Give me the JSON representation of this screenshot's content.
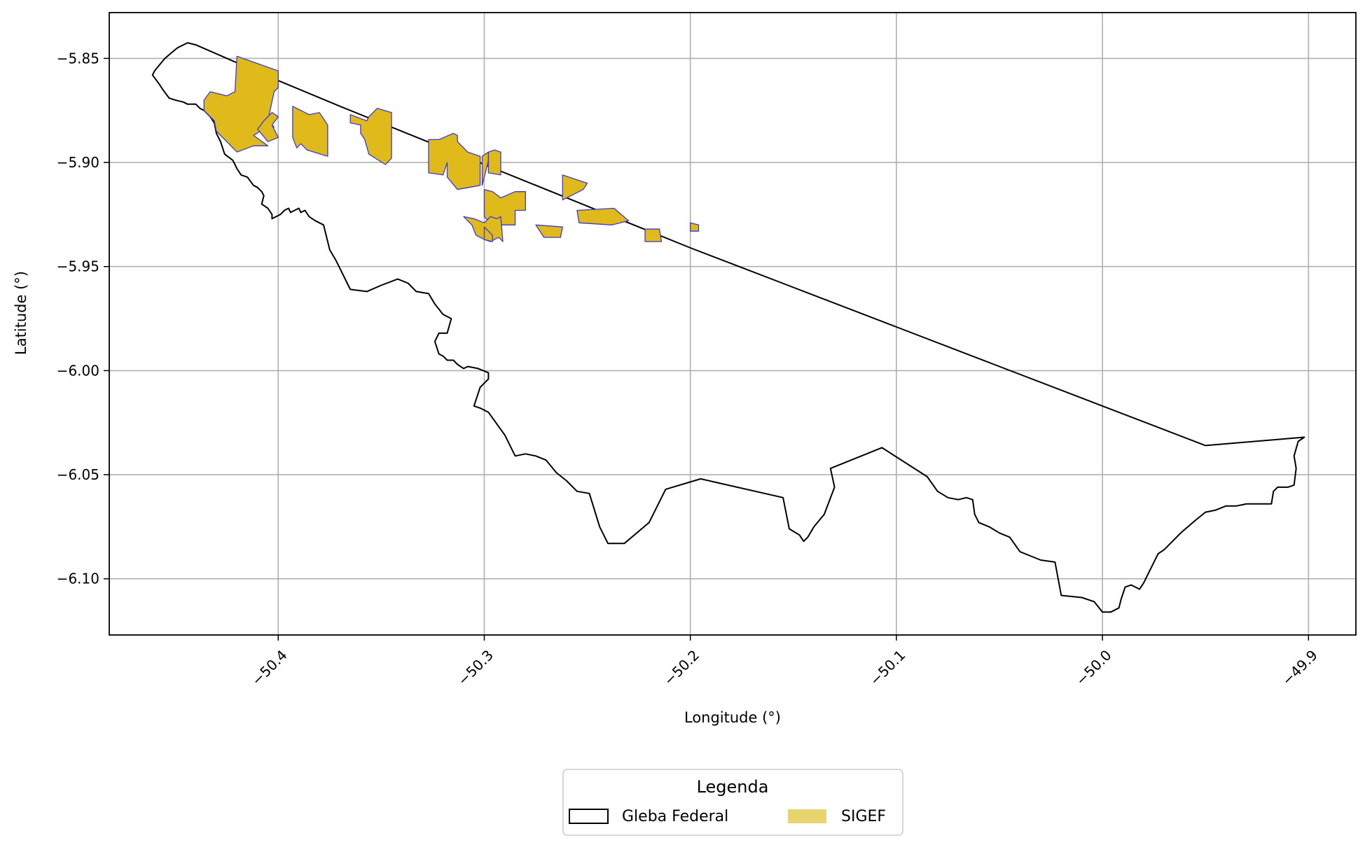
{
  "chart_data": {
    "type": "map",
    "xlabel": "Longitude (°)",
    "ylabel": "Latitude (°)",
    "xlim": [
      -50.482,
      -49.877
    ],
    "ylim": [
      -6.127,
      -5.828
    ],
    "x_ticks": [
      -50.4,
      -50.3,
      -50.2,
      -50.1,
      -50.0,
      -49.9
    ],
    "x_tick_labels": [
      "−50.4",
      "−50.3",
      "−50.2",
      "−50.1",
      "−50.0",
      "−49.9"
    ],
    "y_ticks": [
      -5.85,
      -5.9,
      -5.95,
      -6.0,
      -6.05,
      -6.1
    ],
    "y_tick_labels": [
      "−5.85",
      "−5.90",
      "−5.95",
      "−6.00",
      "−6.05",
      "−6.10"
    ],
    "grid": true,
    "legend": {
      "title": "Legenda",
      "placement": "bottom-center",
      "entries": [
        {
          "label": "Gleba Federal",
          "style": "outline"
        },
        {
          "label": "SIGEF",
          "style": "fill"
        }
      ]
    },
    "colors": {
      "gleba_stroke": "#000000",
      "sigef_fill": "#e0b91a",
      "sigef_edge": "#3b3bd6",
      "legend_sigef": "#e8d46e",
      "grid": "#b0b0b0"
    },
    "gleba_federal": {
      "name": "Gleba Federal",
      "boundary": [
        [
          -50.444,
          -5.8425
        ],
        [
          -50.44,
          -5.8435
        ],
        [
          -50.404,
          -5.859
        ],
        [
          -50.37,
          -5.873
        ],
        [
          -50.33,
          -5.889
        ],
        [
          -50.3,
          -5.901
        ],
        [
          -50.26,
          -5.917
        ],
        [
          -50.2,
          -5.941
        ],
        [
          -50.15,
          -5.96
        ],
        [
          -50.1,
          -5.979
        ],
        [
          -50.05,
          -5.998
        ],
        [
          -50.0,
          -6.017
        ],
        [
          -49.95,
          -6.036
        ],
        [
          -49.902,
          -6.032
        ],
        [
          -49.905,
          -6.034
        ],
        [
          -49.907,
          -6.041
        ],
        [
          -49.906,
          -6.047
        ],
        [
          -49.907,
          -6.055
        ],
        [
          -49.91,
          -6.056
        ],
        [
          -49.915,
          -6.056
        ],
        [
          -49.917,
          -6.058
        ],
        [
          -49.918,
          -6.064
        ],
        [
          -49.93,
          -6.064
        ],
        [
          -49.935,
          -6.065
        ],
        [
          -49.94,
          -6.065
        ],
        [
          -49.945,
          -6.067
        ],
        [
          -49.95,
          -6.068
        ],
        [
          -49.955,
          -6.072
        ],
        [
          -49.962,
          -6.078
        ],
        [
          -49.965,
          -6.081
        ],
        [
          -49.97,
          -6.086
        ],
        [
          -49.973,
          -6.088
        ],
        [
          -49.976,
          -6.094
        ],
        [
          -49.978,
          -6.098
        ],
        [
          -49.98,
          -6.102
        ],
        [
          -49.982,
          -6.105
        ],
        [
          -49.984,
          -6.104
        ],
        [
          -49.986,
          -6.103
        ],
        [
          -49.989,
          -6.104
        ],
        [
          -49.991,
          -6.11
        ],
        [
          -49.992,
          -6.114
        ],
        [
          -49.996,
          -6.116
        ],
        [
          -50.0,
          -6.116
        ],
        [
          -50.004,
          -6.111
        ],
        [
          -50.01,
          -6.109
        ],
        [
          -50.02,
          -6.108
        ],
        [
          -50.023,
          -6.092
        ],
        [
          -50.03,
          -6.091
        ],
        [
          -50.035,
          -6.089
        ],
        [
          -50.04,
          -6.087
        ],
        [
          -50.045,
          -6.08
        ],
        [
          -50.05,
          -6.078
        ],
        [
          -50.055,
          -6.075
        ],
        [
          -50.06,
          -6.073
        ],
        [
          -50.062,
          -6.069
        ],
        [
          -50.063,
          -6.062
        ],
        [
          -50.066,
          -6.061
        ],
        [
          -50.07,
          -6.062
        ],
        [
          -50.075,
          -6.061
        ],
        [
          -50.08,
          -6.058
        ],
        [
          -50.085,
          -6.051
        ],
        [
          -50.107,
          -6.037
        ],
        [
          -50.132,
          -6.047
        ],
        [
          -50.13,
          -6.056
        ],
        [
          -50.135,
          -6.069
        ],
        [
          -50.14,
          -6.075
        ],
        [
          -50.143,
          -6.08
        ],
        [
          -50.145,
          -6.082
        ],
        [
          -50.147,
          -6.079
        ],
        [
          -50.152,
          -6.076
        ],
        [
          -50.155,
          -6.061
        ],
        [
          -50.195,
          -6.052
        ],
        [
          -50.212,
          -6.057
        ],
        [
          -50.22,
          -6.073
        ],
        [
          -50.232,
          -6.083
        ],
        [
          -50.24,
          -6.083
        ],
        [
          -50.244,
          -6.075
        ],
        [
          -50.249,
          -6.059
        ],
        [
          -50.255,
          -6.058
        ],
        [
          -50.26,
          -6.053
        ],
        [
          -50.265,
          -6.049
        ],
        [
          -50.27,
          -6.043
        ],
        [
          -50.275,
          -6.041
        ],
        [
          -50.28,
          -6.04
        ],
        [
          -50.285,
          -6.041
        ],
        [
          -50.29,
          -6.031
        ],
        [
          -50.298,
          -6.02
        ],
        [
          -50.302,
          -6.018
        ],
        [
          -50.305,
          -6.017
        ],
        [
          -50.302,
          -6.008
        ],
        [
          -50.298,
          -6.004
        ],
        [
          -50.298,
          -6.001
        ],
        [
          -50.303,
          -5.999
        ],
        [
          -50.308,
          -5.998
        ],
        [
          -50.31,
          -5.999
        ],
        [
          -50.313,
          -5.997
        ],
        [
          -50.315,
          -5.995
        ],
        [
          -50.318,
          -5.995
        ],
        [
          -50.32,
          -5.993
        ],
        [
          -50.322,
          -5.992
        ],
        [
          -50.324,
          -5.986
        ],
        [
          -50.322,
          -5.982
        ],
        [
          -50.318,
          -5.982
        ],
        [
          -50.316,
          -5.975
        ],
        [
          -50.32,
          -5.973
        ],
        [
          -50.324,
          -5.968
        ],
        [
          -50.327,
          -5.963
        ],
        [
          -50.333,
          -5.962
        ],
        [
          -50.337,
          -5.958
        ],
        [
          -50.342,
          -5.956
        ],
        [
          -50.35,
          -5.959
        ],
        [
          -50.357,
          -5.962
        ],
        [
          -50.365,
          -5.961
        ],
        [
          -50.367,
          -5.957
        ],
        [
          -50.37,
          -5.951
        ],
        [
          -50.372,
          -5.947
        ],
        [
          -50.375,
          -5.942
        ],
        [
          -50.376,
          -5.938
        ],
        [
          -50.378,
          -5.93
        ],
        [
          -50.382,
          -5.928
        ],
        [
          -50.385,
          -5.926
        ],
        [
          -50.387,
          -5.923
        ],
        [
          -50.389,
          -5.924
        ],
        [
          -50.39,
          -5.922
        ],
        [
          -50.394,
          -5.924
        ],
        [
          -50.395,
          -5.922
        ],
        [
          -50.397,
          -5.923
        ],
        [
          -50.399,
          -5.925
        ],
        [
          -50.403,
          -5.927
        ],
        [
          -50.403,
          -5.925
        ],
        [
          -50.405,
          -5.922
        ],
        [
          -50.408,
          -5.92
        ],
        [
          -50.407,
          -5.916
        ],
        [
          -50.408,
          -5.914
        ],
        [
          -50.41,
          -5.912
        ],
        [
          -50.412,
          -5.911
        ],
        [
          -50.415,
          -5.907
        ],
        [
          -50.418,
          -5.906
        ],
        [
          -50.42,
          -5.903
        ],
        [
          -50.422,
          -5.899
        ],
        [
          -50.426,
          -5.896
        ],
        [
          -50.428,
          -5.89
        ],
        [
          -50.43,
          -5.886
        ],
        [
          -50.431,
          -5.881
        ],
        [
          -50.433,
          -5.878
        ],
        [
          -50.436,
          -5.875
        ],
        [
          -50.438,
          -5.874
        ],
        [
          -50.44,
          -5.872
        ],
        [
          -50.444,
          -5.872
        ],
        [
          -50.446,
          -5.871
        ],
        [
          -50.45,
          -5.87
        ],
        [
          -50.453,
          -5.869
        ],
        [
          -50.456,
          -5.865
        ],
        [
          -50.458,
          -5.862
        ],
        [
          -50.461,
          -5.858
        ],
        [
          -50.46,
          -5.856
        ],
        [
          -50.455,
          -5.85
        ],
        [
          -50.449,
          -5.845
        ],
        [
          -50.444,
          -5.8425
        ]
      ]
    },
    "sigef_parcels": [
      [
        [
          -50.42,
          -5.849
        ],
        [
          -50.4,
          -5.856
        ],
        [
          -50.4,
          -5.864
        ],
        [
          -50.402,
          -5.866
        ],
        [
          -50.405,
          -5.88
        ],
        [
          -50.402,
          -5.883
        ],
        [
          -50.407,
          -5.884
        ],
        [
          -50.412,
          -5.887
        ],
        [
          -50.405,
          -5.892
        ],
        [
          -50.412,
          -5.892
        ],
        [
          -50.42,
          -5.895
        ],
        [
          -50.425,
          -5.89
        ],
        [
          -50.43,
          -5.885
        ],
        [
          -50.431,
          -5.88
        ],
        [
          -50.433,
          -5.878
        ],
        [
          -50.436,
          -5.875
        ],
        [
          -50.436,
          -5.87
        ],
        [
          -50.433,
          -5.866
        ],
        [
          -50.425,
          -5.868
        ],
        [
          -50.421,
          -5.866
        ],
        [
          -50.42,
          -5.849
        ]
      ],
      [
        [
          -50.4,
          -5.878
        ],
        [
          -50.403,
          -5.876
        ],
        [
          -50.407,
          -5.88
        ],
        [
          -50.41,
          -5.884
        ],
        [
          -50.405,
          -5.89
        ],
        [
          -50.4,
          -5.888
        ],
        [
          -50.403,
          -5.882
        ],
        [
          -50.4,
          -5.878
        ]
      ],
      [
        [
          -50.393,
          -5.873
        ],
        [
          -50.385,
          -5.877
        ],
        [
          -50.38,
          -5.876
        ],
        [
          -50.376,
          -5.882
        ],
        [
          -50.376,
          -5.897
        ],
        [
          -50.386,
          -5.894
        ],
        [
          -50.389,
          -5.891
        ],
        [
          -50.391,
          -5.893
        ],
        [
          -50.393,
          -5.888
        ],
        [
          -50.393,
          -5.873
        ]
      ],
      [
        [
          -50.365,
          -5.877
        ],
        [
          -50.357,
          -5.88
        ],
        [
          -50.356,
          -5.878
        ],
        [
          -50.352,
          -5.874
        ],
        [
          -50.345,
          -5.876
        ],
        [
          -50.345,
          -5.898
        ],
        [
          -50.348,
          -5.901
        ],
        [
          -50.356,
          -5.896
        ],
        [
          -50.358,
          -5.889
        ],
        [
          -50.36,
          -5.886
        ],
        [
          -50.36,
          -5.882
        ],
        [
          -50.365,
          -5.881
        ],
        [
          -50.365,
          -5.877
        ]
      ],
      [
        [
          -50.322,
          -5.889
        ],
        [
          -50.315,
          -5.886
        ],
        [
          -50.313,
          -5.887
        ],
        [
          -50.313,
          -5.89
        ],
        [
          -50.308,
          -5.895
        ],
        [
          -50.302,
          -5.897
        ],
        [
          -50.302,
          -5.911
        ],
        [
          -50.313,
          -5.913
        ],
        [
          -50.318,
          -5.907
        ],
        [
          -50.318,
          -5.9
        ],
        [
          -50.32,
          -5.906
        ],
        [
          -50.327,
          -5.905
        ],
        [
          -50.327,
          -5.889
        ],
        [
          -50.322,
          -5.889
        ]
      ],
      [
        [
          -50.301,
          -5.897
        ],
        [
          -50.298,
          -5.895
        ],
        [
          -50.298,
          -5.899
        ],
        [
          -50.301,
          -5.911
        ],
        [
          -50.301,
          -5.897
        ]
      ],
      [
        [
          -50.3,
          -5.913
        ],
        [
          -50.296,
          -5.914
        ],
        [
          -50.292,
          -5.917
        ],
        [
          -50.285,
          -5.914
        ],
        [
          -50.28,
          -5.914
        ],
        [
          -50.28,
          -5.923
        ],
        [
          -50.285,
          -5.923
        ],
        [
          -50.285,
          -5.93
        ],
        [
          -50.296,
          -5.93
        ],
        [
          -50.3,
          -5.926
        ],
        [
          -50.3,
          -5.913
        ]
      ],
      [
        [
          -50.31,
          -5.926
        ],
        [
          -50.306,
          -5.93
        ],
        [
          -50.304,
          -5.935
        ],
        [
          -50.3,
          -5.937
        ],
        [
          -50.297,
          -5.938
        ],
        [
          -50.293,
          -5.936
        ],
        [
          -50.291,
          -5.938
        ],
        [
          -50.292,
          -5.926
        ],
        [
          -50.294,
          -5.927
        ],
        [
          -50.297,
          -5.926
        ],
        [
          -50.3,
          -5.929
        ],
        [
          -50.305,
          -5.927
        ],
        [
          -50.31,
          -5.926
        ]
      ],
      [
        [
          -50.298,
          -5.895
        ],
        [
          -50.295,
          -5.894
        ],
        [
          -50.292,
          -5.895
        ],
        [
          -50.292,
          -5.906
        ],
        [
          -50.298,
          -5.905
        ],
        [
          -50.298,
          -5.895
        ]
      ],
      [
        [
          -50.262,
          -5.906
        ],
        [
          -50.25,
          -5.91
        ],
        [
          -50.252,
          -5.913
        ],
        [
          -50.262,
          -5.918
        ],
        [
          -50.262,
          -5.906
        ]
      ],
      [
        [
          -50.275,
          -5.93
        ],
        [
          -50.271,
          -5.936
        ],
        [
          -50.263,
          -5.936
        ],
        [
          -50.262,
          -5.931
        ],
        [
          -50.275,
          -5.93
        ]
      ],
      [
        [
          -50.255,
          -5.923
        ],
        [
          -50.237,
          -5.922
        ],
        [
          -50.23,
          -5.928
        ],
        [
          -50.238,
          -5.93
        ],
        [
          -50.254,
          -5.929
        ],
        [
          -50.255,
          -5.923
        ]
      ],
      [
        [
          -50.222,
          -5.932
        ],
        [
          -50.215,
          -5.932
        ],
        [
          -50.214,
          -5.938
        ],
        [
          -50.222,
          -5.938
        ],
        [
          -50.222,
          -5.932
        ]
      ],
      [
        [
          -50.2,
          -5.929
        ],
        [
          -50.196,
          -5.93
        ],
        [
          -50.196,
          -5.933
        ],
        [
          -50.2,
          -5.933
        ],
        [
          -50.2,
          -5.929
        ]
      ],
      [
        [
          -50.3,
          -5.931
        ],
        [
          -50.296,
          -5.935
        ],
        [
          -50.296,
          -5.938
        ],
        [
          -50.3,
          -5.937
        ],
        [
          -50.3,
          -5.931
        ]
      ]
    ]
  }
}
